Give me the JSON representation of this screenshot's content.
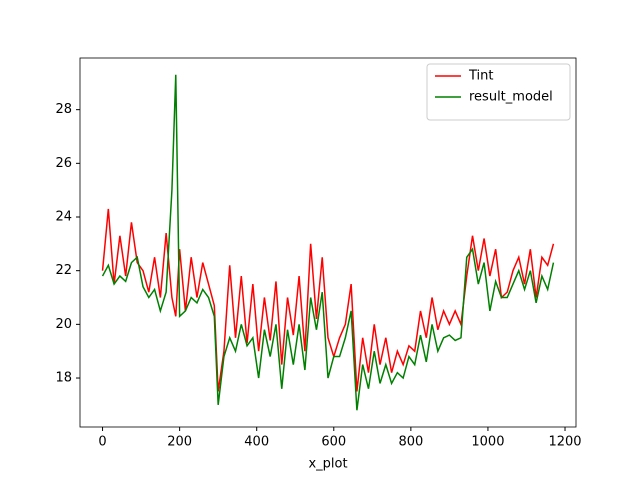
{
  "chart_data": {
    "type": "line",
    "xlabel": "x_plot",
    "x": [
      0,
      15,
      30,
      45,
      60,
      75,
      90,
      105,
      120,
      135,
      150,
      165,
      180,
      190,
      200,
      215,
      230,
      245,
      260,
      275,
      290,
      300,
      315,
      330,
      345,
      360,
      375,
      390,
      405,
      420,
      435,
      450,
      465,
      480,
      495,
      510,
      525,
      540,
      555,
      570,
      585,
      600,
      615,
      630,
      645,
      660,
      675,
      690,
      705,
      720,
      735,
      750,
      765,
      780,
      795,
      810,
      825,
      840,
      855,
      870,
      885,
      900,
      915,
      930,
      945,
      960,
      975,
      990,
      1005,
      1020,
      1035,
      1050,
      1065,
      1080,
      1095,
      1110,
      1125,
      1140,
      1155,
      1170
    ],
    "series": [
      {
        "name": "Tint",
        "color": "#ff0000",
        "values": [
          22.0,
          24.3,
          21.5,
          23.3,
          21.8,
          23.8,
          22.3,
          22.0,
          21.2,
          22.5,
          21.0,
          23.4,
          21.0,
          20.3,
          22.8,
          20.5,
          22.5,
          21.0,
          22.3,
          21.5,
          20.7,
          17.5,
          19.0,
          22.2,
          19.5,
          21.8,
          19.3,
          21.5,
          19.0,
          21.0,
          19.4,
          21.6,
          18.5,
          21.0,
          19.6,
          21.8,
          19.0,
          23.0,
          20.2,
          22.5,
          19.5,
          18.8,
          19.5,
          20.0,
          21.5,
          17.5,
          19.5,
          18.2,
          20.0,
          18.5,
          19.5,
          18.2,
          19.0,
          18.5,
          19.2,
          19.0,
          20.5,
          19.5,
          21.0,
          19.8,
          20.5,
          20.0,
          20.5,
          20.0,
          21.8,
          23.3,
          22.0,
          23.2,
          21.8,
          22.8,
          21.0,
          21.2,
          22.0,
          22.5,
          21.5,
          22.8,
          21.0,
          22.5,
          22.2,
          23.0
        ]
      },
      {
        "name": "result_model",
        "color": "#008000",
        "values": [
          21.8,
          22.2,
          21.5,
          21.8,
          21.6,
          22.3,
          22.5,
          21.4,
          21.0,
          21.3,
          20.5,
          21.2,
          25.0,
          29.3,
          20.3,
          20.5,
          21.0,
          20.8,
          21.3,
          21.0,
          20.3,
          17.0,
          18.8,
          19.5,
          19.0,
          20.0,
          19.2,
          19.5,
          18.0,
          19.8,
          18.8,
          20.0,
          17.6,
          19.8,
          18.5,
          20.0,
          18.3,
          21.0,
          19.8,
          21.2,
          18.0,
          18.8,
          18.8,
          19.5,
          20.5,
          16.8,
          18.5,
          17.6,
          19.0,
          17.8,
          18.5,
          17.8,
          18.2,
          18.0,
          18.8,
          18.5,
          19.6,
          18.6,
          20.0,
          19.0,
          19.5,
          19.6,
          19.4,
          19.5,
          22.5,
          22.8,
          21.5,
          22.3,
          20.5,
          21.6,
          21.0,
          21.0,
          21.5,
          22.0,
          21.3,
          22.0,
          20.8,
          21.8,
          21.3,
          22.3
        ]
      }
    ],
    "xlim": [
      -58.5,
      1228.5
    ],
    "xticks": [
      0,
      200,
      400,
      600,
      800,
      1000,
      1200
    ],
    "ylim": [
      16.175,
      29.925
    ],
    "yticks": [
      18,
      20,
      22,
      24,
      26,
      28
    ],
    "legend": "upper right"
  }
}
